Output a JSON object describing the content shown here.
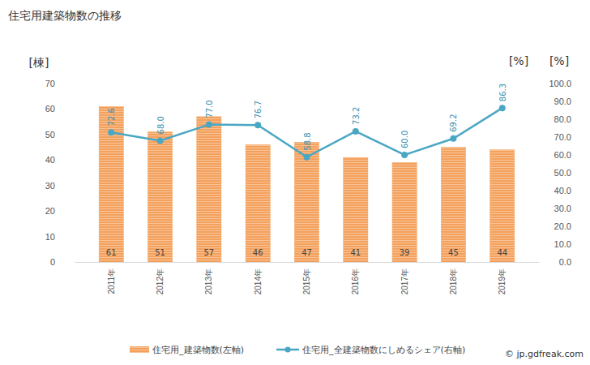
{
  "chart_data": {
    "type": "bar",
    "title": "住宅用建築物数の推移",
    "y_label": "[棟]",
    "y2_label": "[%]",
    "annotations": [
      "[%]"
    ],
    "source": "© jp.gdfreak.com",
    "categories": [
      "2011年",
      "2012年",
      "2013年",
      "2014年",
      "2015年",
      "2016年",
      "2017年",
      "2018年",
      "2019年"
    ],
    "series": [
      {
        "name": "住宅用_建築物数(左軸)",
        "type": "bar",
        "color": "#f4a15d",
        "values": [
          61,
          51,
          57,
          46,
          47,
          41,
          39,
          45,
          44
        ]
      },
      {
        "name": "住宅用_全建築物数にしめるシェア(右軸)",
        "type": "line",
        "axis": "y2",
        "color": "#4aa7c4",
        "marker": "circle",
        "values": [
          72.6,
          68.0,
          77.0,
          76.7,
          58.8,
          73.2,
          60.0,
          69.2,
          86.3
        ],
        "value_labels": [
          "72.6",
          "68.0",
          "77.0",
          "76.7",
          "58.8",
          "73.2",
          "60.0",
          "69.2",
          "86.3"
        ]
      }
    ],
    "ylim": [
      0,
      70
    ],
    "yticks": [
      0,
      10,
      20,
      30,
      40,
      50,
      60,
      70
    ],
    "y2lim": [
      0,
      100
    ],
    "y2ticks": [
      {
        "value": 0,
        "label": "0.0"
      },
      {
        "value": 10,
        "label": "10.0"
      },
      {
        "value": 20,
        "label": "20.0"
      },
      {
        "value": 30,
        "label": "30.0"
      },
      {
        "value": 40,
        "label": "40.0"
      },
      {
        "value": 50,
        "label": "50.0"
      },
      {
        "value": 60,
        "label": "60.0"
      },
      {
        "value": 70,
        "label": "70.0"
      },
      {
        "value": 80,
        "label": "80.0"
      },
      {
        "value": 90,
        "label": "90.0"
      },
      {
        "value": 100,
        "label": "100.0"
      }
    ],
    "grid": false,
    "data_labels": true,
    "legend": "bottom"
  }
}
